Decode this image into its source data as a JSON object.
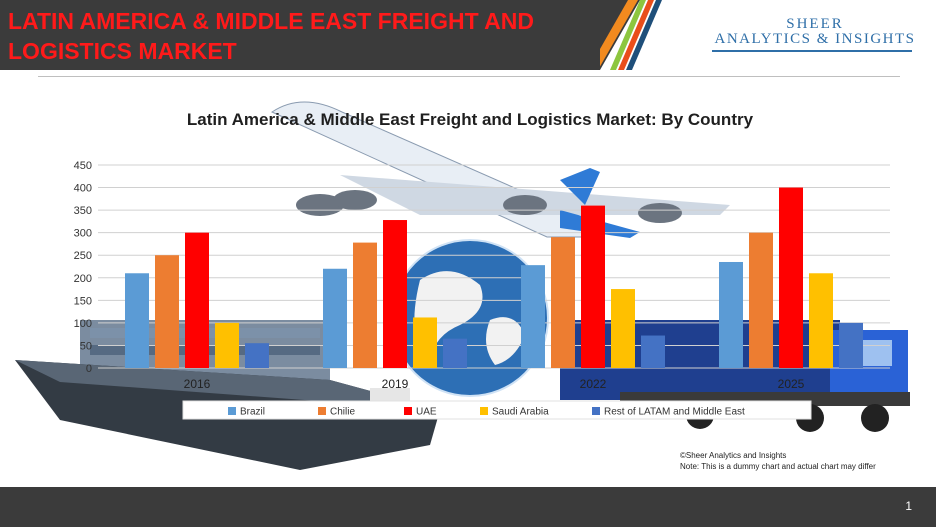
{
  "header": {
    "title": "LATIN AMERICA & MIDDLE EAST FREIGHT AND LOGISTICS MARKET",
    "brand_line1": "SHEER",
    "brand_line2": "ANALYTICS & INSIGHTS"
  },
  "colors": {
    "header_dark": "#3b3b3b",
    "title_red": "#ff1a1a",
    "brand_blue": "#2f6fa8"
  },
  "notes": {
    "copyright": "©Sheer Analytics and Insights",
    "disclaimer": "Note: This is a dummy chart and actual chart may differ"
  },
  "footer": {
    "page_number": "1"
  },
  "chart_data": {
    "type": "bar",
    "title": "Latin America & Middle East Freight and Logistics Market: By Country",
    "categories": [
      "2016",
      "2019",
      "2022",
      "2025"
    ],
    "series": [
      {
        "name": "Brazil",
        "color": "#5b9bd5",
        "values": [
          210,
          220,
          228,
          235
        ]
      },
      {
        "name": "Chilie",
        "color": "#ed7d31",
        "values": [
          250,
          278,
          290,
          300
        ]
      },
      {
        "name": "UAE",
        "color": "#ff0000",
        "values": [
          300,
          328,
          360,
          400
        ]
      },
      {
        "name": "Saudi Arabia",
        "color": "#ffc000",
        "values": [
          100,
          112,
          175,
          210
        ]
      },
      {
        "name": "Rest of LATAM and Middle East",
        "color": "#4472c4",
        "values": [
          55,
          65,
          72,
          100
        ]
      }
    ],
    "yticks": [
      0,
      50,
      100,
      150,
      200,
      250,
      300,
      350,
      400,
      450
    ],
    "ylim": [
      0,
      450
    ],
    "grid": true,
    "legend_position": "bottom"
  }
}
